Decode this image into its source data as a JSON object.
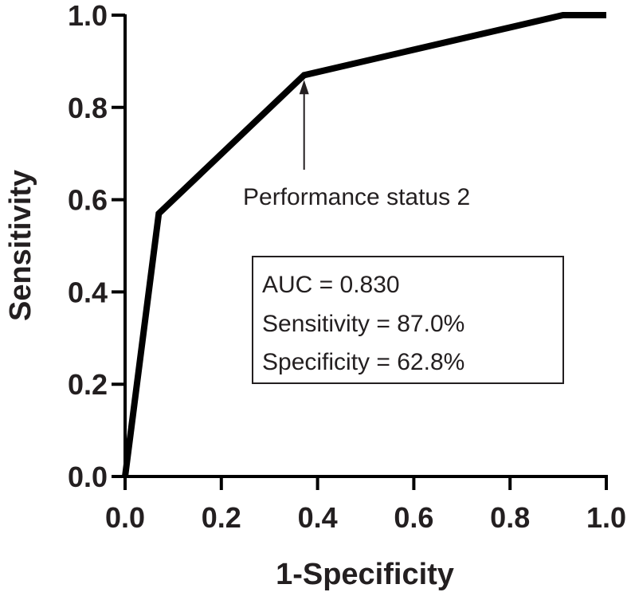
{
  "chart_data": {
    "type": "line",
    "title": "",
    "xlabel": "1-Specificity",
    "ylabel": "Sensitivity",
    "xlim": [
      0,
      1
    ],
    "ylim": [
      0,
      1
    ],
    "x_ticks": [
      "0.0",
      "0.2",
      "0.4",
      "0.6",
      "0.8",
      "1.0"
    ],
    "y_ticks": [
      "0.0",
      "0.2",
      "0.4",
      "0.6",
      "0.8",
      "1.0"
    ],
    "grid": false,
    "series": [
      {
        "x": [
          0.0,
          0.07,
          0.372,
          0.91,
          1.0
        ],
        "y": [
          0.0,
          0.57,
          0.87,
          1.0,
          1.0
        ]
      }
    ],
    "annotation": {
      "text": "Performance status 2",
      "x": 0.372,
      "y": 0.87
    },
    "stats_box": [
      "AUC = 0.830",
      "Sensitivity = 87.0%",
      "Specificity = 62.8%"
    ],
    "line_color": "#000000"
  }
}
